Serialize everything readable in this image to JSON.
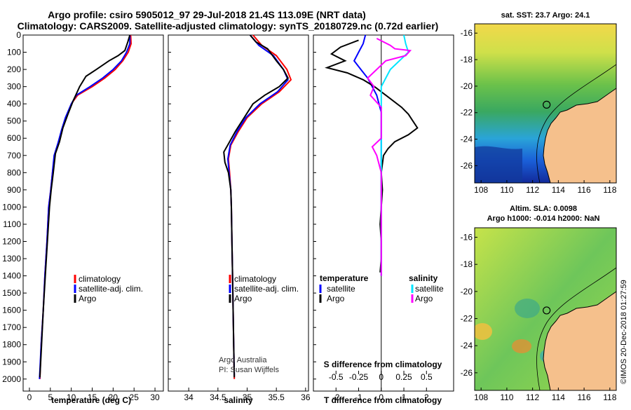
{
  "title": {
    "line1": "Argo profile: csiro 5905012_97 29-Jul-2018 21.4S 113.09E (NRT data)",
    "line2": "Climatology: CARS2009. Satellite-adjusted climatology: synTS_20180729.nc (0.72d earlier)"
  },
  "depth_axis": {
    "ticks": [
      0,
      100,
      200,
      300,
      400,
      500,
      600,
      700,
      800,
      900,
      1000,
      1100,
      1200,
      1300,
      1400,
      1500,
      1600,
      1700,
      1800,
      1900,
      2000
    ],
    "range": [
      0,
      2070
    ]
  },
  "colors": {
    "climatology": "#ff0000",
    "satellite": "#0000ff",
    "argo": "#000000",
    "sat_salinity": "#00e5ff",
    "argo_salinity": "#ff00ff",
    "land": "#f5c08c"
  },
  "chart_data": [
    {
      "type": "line",
      "id": "temperature",
      "xlabel": "temperature (deg C)",
      "ylabel": "",
      "xlim": [
        -1.5,
        32
      ],
      "ylim": [
        2070,
        0
      ],
      "xticks": [
        0,
        5,
        10,
        15,
        20,
        25,
        30
      ],
      "legend": [
        "climatology",
        "satellite-adj. clim.",
        "Argo"
      ],
      "series": [
        {
          "name": "climatology",
          "color": "#ff0000",
          "points": [
            [
              24.2,
              0
            ],
            [
              24.3,
              50
            ],
            [
              23.6,
              100
            ],
            [
              22.3,
              150
            ],
            [
              20.5,
              200
            ],
            [
              18,
              250
            ],
            [
              15,
              300
            ],
            [
              11.5,
              350
            ],
            [
              10,
              400
            ],
            [
              8.8,
              480
            ],
            [
              7.8,
              550
            ],
            [
              6.9,
              630
            ],
            [
              6,
              700
            ],
            [
              5.5,
              800
            ],
            [
              5.1,
              900
            ],
            [
              4.6,
              1000
            ],
            [
              4.2,
              1200
            ],
            [
              3.7,
              1400
            ],
            [
              3.3,
              1600
            ],
            [
              2.8,
              1800
            ],
            [
              2.5,
              2000
            ]
          ]
        },
        {
          "name": "satellite-adj. clim.",
          "color": "#0000ff",
          "points": [
            [
              24,
              0
            ],
            [
              24,
              50
            ],
            [
              23.2,
              100
            ],
            [
              22,
              150
            ],
            [
              20,
              200
            ],
            [
              17.5,
              250
            ],
            [
              14.5,
              300
            ],
            [
              11.2,
              350
            ],
            [
              10,
              400
            ],
            [
              8.6,
              480
            ],
            [
              7.7,
              550
            ],
            [
              6.8,
              630
            ],
            [
              5.9,
              700
            ],
            [
              5.5,
              800
            ],
            [
              5.1,
              900
            ],
            [
              4.6,
              1000
            ],
            [
              4.2,
              1200
            ],
            [
              3.7,
              1400
            ],
            [
              3.3,
              1600
            ],
            [
              2.8,
              1800
            ],
            [
              2.4,
              2000
            ]
          ]
        },
        {
          "name": "Argo",
          "color": "#000000",
          "points": [
            [
              24,
              0
            ],
            [
              23.5,
              40
            ],
            [
              22.8,
              90
            ],
            [
              21.2,
              120
            ],
            [
              19,
              150
            ],
            [
              16,
              200
            ],
            [
              13.5,
              240
            ],
            [
              12,
              300
            ],
            [
              10.5,
              380
            ],
            [
              9.2,
              460
            ],
            [
              8,
              540
            ],
            [
              7.2,
              620
            ],
            [
              6.2,
              690
            ],
            [
              5.7,
              800
            ],
            [
              5.2,
              900
            ],
            [
              4.8,
              1000
            ],
            [
              4.3,
              1200
            ],
            [
              3.8,
              1400
            ],
            [
              3.3,
              1600
            ],
            [
              2.9,
              1800
            ],
            [
              2.5,
              1990
            ]
          ]
        }
      ]
    },
    {
      "type": "line",
      "id": "salinity",
      "xlabel": "salinity",
      "ylabel": "",
      "xlim": [
        33.65,
        36.05
      ],
      "ylim": [
        2070,
        0
      ],
      "xticks": [
        34,
        34.5,
        35,
        35.5,
        36
      ],
      "xticklabels": [
        "34",
        "34.5",
        "35",
        "35.5",
        "36"
      ],
      "legend": [
        "climatology",
        "satellite-adj. clim.",
        "Argo"
      ],
      "credit": [
        "Argo Australia",
        "PI: Susan Wijffels"
      ],
      "series": [
        {
          "name": "climatology",
          "color": "#ff0000",
          "points": [
            [
              35.1,
              0
            ],
            [
              35.25,
              60
            ],
            [
              35.5,
              120
            ],
            [
              35.68,
              200
            ],
            [
              35.75,
              260
            ],
            [
              35.55,
              330
            ],
            [
              35.25,
              400
            ],
            [
              35,
              480
            ],
            [
              34.85,
              560
            ],
            [
              34.72,
              640
            ],
            [
              34.68,
              720
            ],
            [
              34.7,
              800
            ],
            [
              34.72,
              900
            ],
            [
              34.73,
              1000
            ],
            [
              34.74,
              1200
            ],
            [
              34.75,
              1400
            ],
            [
              34.76,
              1600
            ],
            [
              34.77,
              1800
            ],
            [
              34.78,
              2000
            ]
          ]
        },
        {
          "name": "satellite-adj. clim.",
          "color": "#0000ff",
          "points": [
            [
              35.05,
              0
            ],
            [
              35.2,
              60
            ],
            [
              35.45,
              120
            ],
            [
              35.62,
              200
            ],
            [
              35.7,
              260
            ],
            [
              35.52,
              330
            ],
            [
              35.22,
              400
            ],
            [
              34.98,
              480
            ],
            [
              34.83,
              560
            ],
            [
              34.71,
              640
            ],
            [
              34.67,
              720
            ],
            [
              34.69,
              800
            ],
            [
              34.72,
              900
            ],
            [
              34.73,
              1000
            ],
            [
              34.74,
              1200
            ],
            [
              34.75,
              1400
            ],
            [
              34.76,
              1600
            ],
            [
              34.77,
              1800
            ],
            [
              34.78,
              1980
            ]
          ]
        },
        {
          "name": "Argo",
          "color": "#000000",
          "points": [
            [
              35.05,
              0
            ],
            [
              35.15,
              40
            ],
            [
              35.35,
              80
            ],
            [
              35.5,
              150
            ],
            [
              35.62,
              200
            ],
            [
              35.7,
              250
            ],
            [
              35.55,
              300
            ],
            [
              35.3,
              350
            ],
            [
              35.1,
              400
            ],
            [
              34.95,
              480
            ],
            [
              34.8,
              560
            ],
            [
              34.7,
              620
            ],
            [
              34.6,
              680
            ],
            [
              34.62,
              740
            ],
            [
              34.68,
              800
            ],
            [
              34.72,
              900
            ],
            [
              34.73,
              1000
            ],
            [
              34.74,
              1200
            ],
            [
              34.75,
              1400
            ],
            [
              34.76,
              1600
            ],
            [
              34.77,
              1800
            ],
            [
              34.78,
              1990
            ]
          ]
        }
      ]
    },
    {
      "type": "line",
      "id": "difference",
      "xlabel": "T difference from climatology",
      "ylabel": "",
      "xlim": [
        -3,
        3.2
      ],
      "ylim": [
        2070,
        0
      ],
      "xticks": [
        -2,
        -1,
        0,
        1,
        2
      ],
      "top_label": "S difference from climatology",
      "s_ticks": [
        -0.5,
        -0.25,
        0,
        0.25,
        0.5
      ],
      "s_ticklabels": [
        "-0.5",
        "-0.25",
        "0",
        "0.25",
        "0.5"
      ],
      "s_scale": 4,
      "legend_headers": [
        "temperature",
        "salinity"
      ],
      "legend_left": [
        "satellite",
        "Argo"
      ],
      "legend_right": [
        "satellite",
        "Argo"
      ],
      "series": [
        {
          "name": "temperature satellite",
          "color": "#0000ff",
          "axis": "T",
          "points": [
            [
              -0.7,
              0
            ],
            [
              -0.8,
              50
            ],
            [
              -1,
              100
            ],
            [
              -1.2,
              150
            ],
            [
              -0.9,
              200
            ],
            [
              -0.6,
              250
            ],
            [
              -0.4,
              300
            ],
            [
              -0.2,
              350
            ],
            [
              0,
              450
            ],
            [
              0,
              1400
            ]
          ]
        },
        {
          "name": "temperature Argo",
          "color": "#000000",
          "axis": "T",
          "points": [
            [
              -1,
              30
            ],
            [
              -1.8,
              70
            ],
            [
              -2.2,
              110
            ],
            [
              -1.6,
              150
            ],
            [
              -2.4,
              190
            ],
            [
              -1.5,
              220
            ],
            [
              -0.8,
              260
            ],
            [
              -0.3,
              300
            ],
            [
              0.3,
              360
            ],
            [
              0.9,
              420
            ],
            [
              1.2,
              460
            ],
            [
              1.4,
              500
            ],
            [
              1.6,
              540
            ],
            [
              1.2,
              580
            ],
            [
              0.6,
              620
            ],
            [
              0.3,
              660
            ],
            [
              0.1,
              700
            ],
            [
              0,
              800
            ],
            [
              0.05,
              900
            ],
            [
              0,
              1000
            ],
            [
              -0.05,
              1100
            ],
            [
              0,
              1200
            ],
            [
              0,
              1300
            ],
            [
              -0.05,
              1380
            ]
          ]
        },
        {
          "name": "salinity satellite",
          "color": "#00e5ff",
          "axis": "S",
          "points": [
            [
              0.25,
              0
            ],
            [
              0.27,
              50
            ],
            [
              0.3,
              100
            ],
            [
              0.2,
              150
            ],
            [
              0.1,
              200
            ],
            [
              0,
              300
            ],
            [
              0,
              800
            ],
            [
              0,
              1400
            ]
          ]
        },
        {
          "name": "salinity Argo",
          "color": "#ff00ff",
          "axis": "S",
          "points": [
            [
              -0.05,
              20
            ],
            [
              0.1,
              60
            ],
            [
              0.15,
              80
            ],
            [
              0.32,
              90
            ],
            [
              0.27,
              120
            ],
            [
              0.05,
              150
            ],
            [
              -0.05,
              200
            ],
            [
              -0.15,
              250
            ],
            [
              -0.08,
              300
            ],
            [
              -0.12,
              350
            ],
            [
              0,
              420
            ],
            [
              0,
              600
            ],
            [
              -0.1,
              650
            ],
            [
              -0.05,
              700
            ],
            [
              0,
              800
            ],
            [
              0,
              1400
            ]
          ]
        }
      ]
    }
  ],
  "maps": [
    {
      "id": "sst",
      "title": "sat. SST: 23.7 Argo: 24.1",
      "xlim": [
        107.5,
        118.5
      ],
      "ylim": [
        -27.3,
        -15.3
      ],
      "xticks": [
        108,
        110,
        112,
        114,
        116,
        118
      ],
      "yticks": [
        -16,
        -18,
        -20,
        -22,
        -24,
        -26
      ],
      "xticklabels": [
        "108",
        "110",
        "112",
        "114",
        "116",
        "118"
      ],
      "yticklabels": [
        "-16",
        "-18",
        "-20",
        "-22",
        "-24",
        "-26"
      ],
      "float_position": [
        113.09,
        -21.4
      ]
    },
    {
      "id": "sla",
      "title_line1": "Altim. SLA: 0.0098",
      "title_line2": "Argo h1000: -0.014 h2000: NaN",
      "xlim": [
        107.5,
        118.5
      ],
      "ylim": [
        -27.3,
        -15.3
      ],
      "xticks": [
        108,
        110,
        112,
        114,
        116,
        118
      ],
      "yticks": [
        -16,
        -18,
        -20,
        -22,
        -24,
        -26
      ],
      "xticklabels": [
        "108",
        "110",
        "112",
        "114",
        "116",
        "118"
      ],
      "yticklabels": [
        "-16",
        "-18",
        "-20",
        "-22",
        "-24",
        "-26"
      ],
      "float_position": [
        113.09,
        -21.4
      ]
    }
  ],
  "credit_vertical": "©IMOS 20-Dec-2018 01:27:59"
}
